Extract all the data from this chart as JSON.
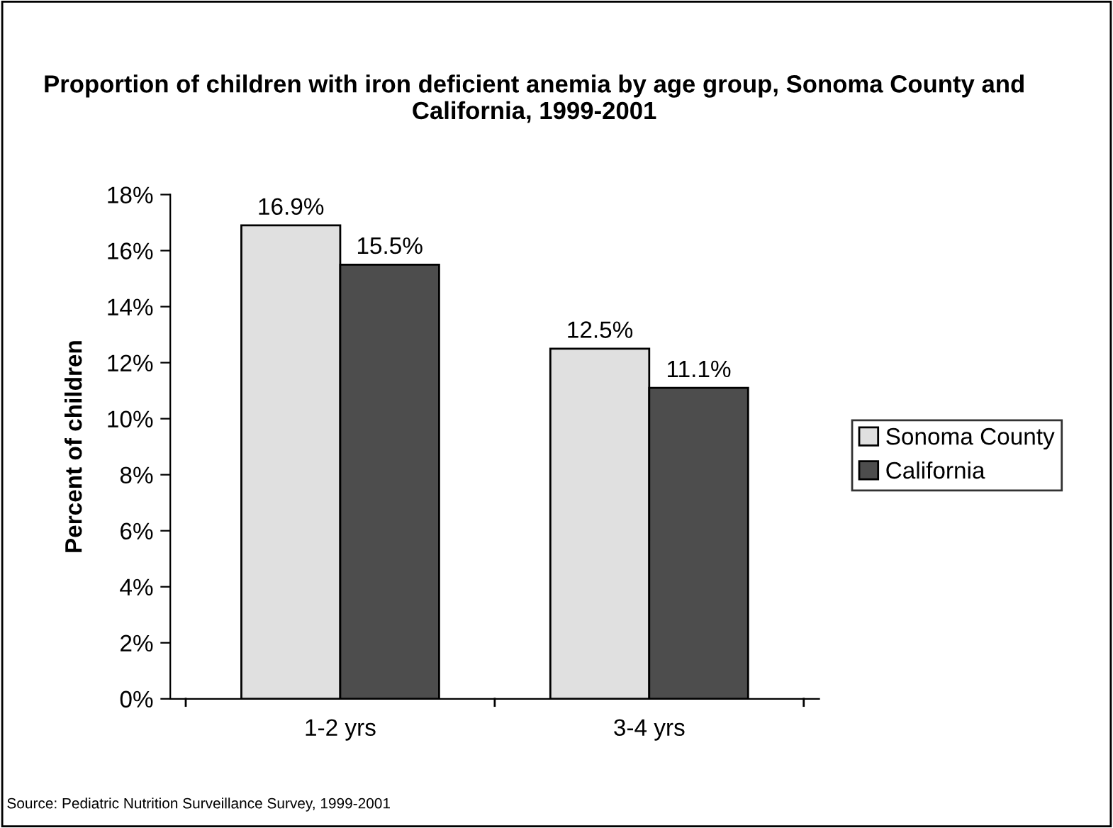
{
  "chart_data": {
    "type": "bar",
    "title": "Proportion of children with iron deficient anemia by age group, Sonoma County and California, 1999-2001",
    "ylabel": "Percent of children",
    "categories": [
      "1-2 yrs",
      "3-4 yrs"
    ],
    "series": [
      {
        "name": "Sonoma County",
        "color": "#e0e0e0",
        "values": [
          16.9,
          12.5
        ],
        "value_labels": [
          "16.9%",
          "12.5%"
        ]
      },
      {
        "name": "California",
        "color": "#4d4d4d",
        "values": [
          15.5,
          11.1
        ],
        "value_labels": [
          "15.5%",
          "11.1%"
        ]
      }
    ],
    "ylim": [
      0,
      18
    ],
    "yticks": [
      {
        "value": 0,
        "label": "0%"
      },
      {
        "value": 2,
        "label": "2%"
      },
      {
        "value": 4,
        "label": "4%"
      },
      {
        "value": 6,
        "label": "6%"
      },
      {
        "value": 8,
        "label": "8%"
      },
      {
        "value": 10,
        "label": "10%"
      },
      {
        "value": 12,
        "label": "12%"
      },
      {
        "value": 14,
        "label": "14%"
      },
      {
        "value": 16,
        "label": "16%"
      },
      {
        "value": 18,
        "label": "18%"
      }
    ],
    "grid": false,
    "legend": "right",
    "annotations": [
      "Source: Pediatric Nutrition Surveillance Survey, 1999-2001"
    ]
  }
}
